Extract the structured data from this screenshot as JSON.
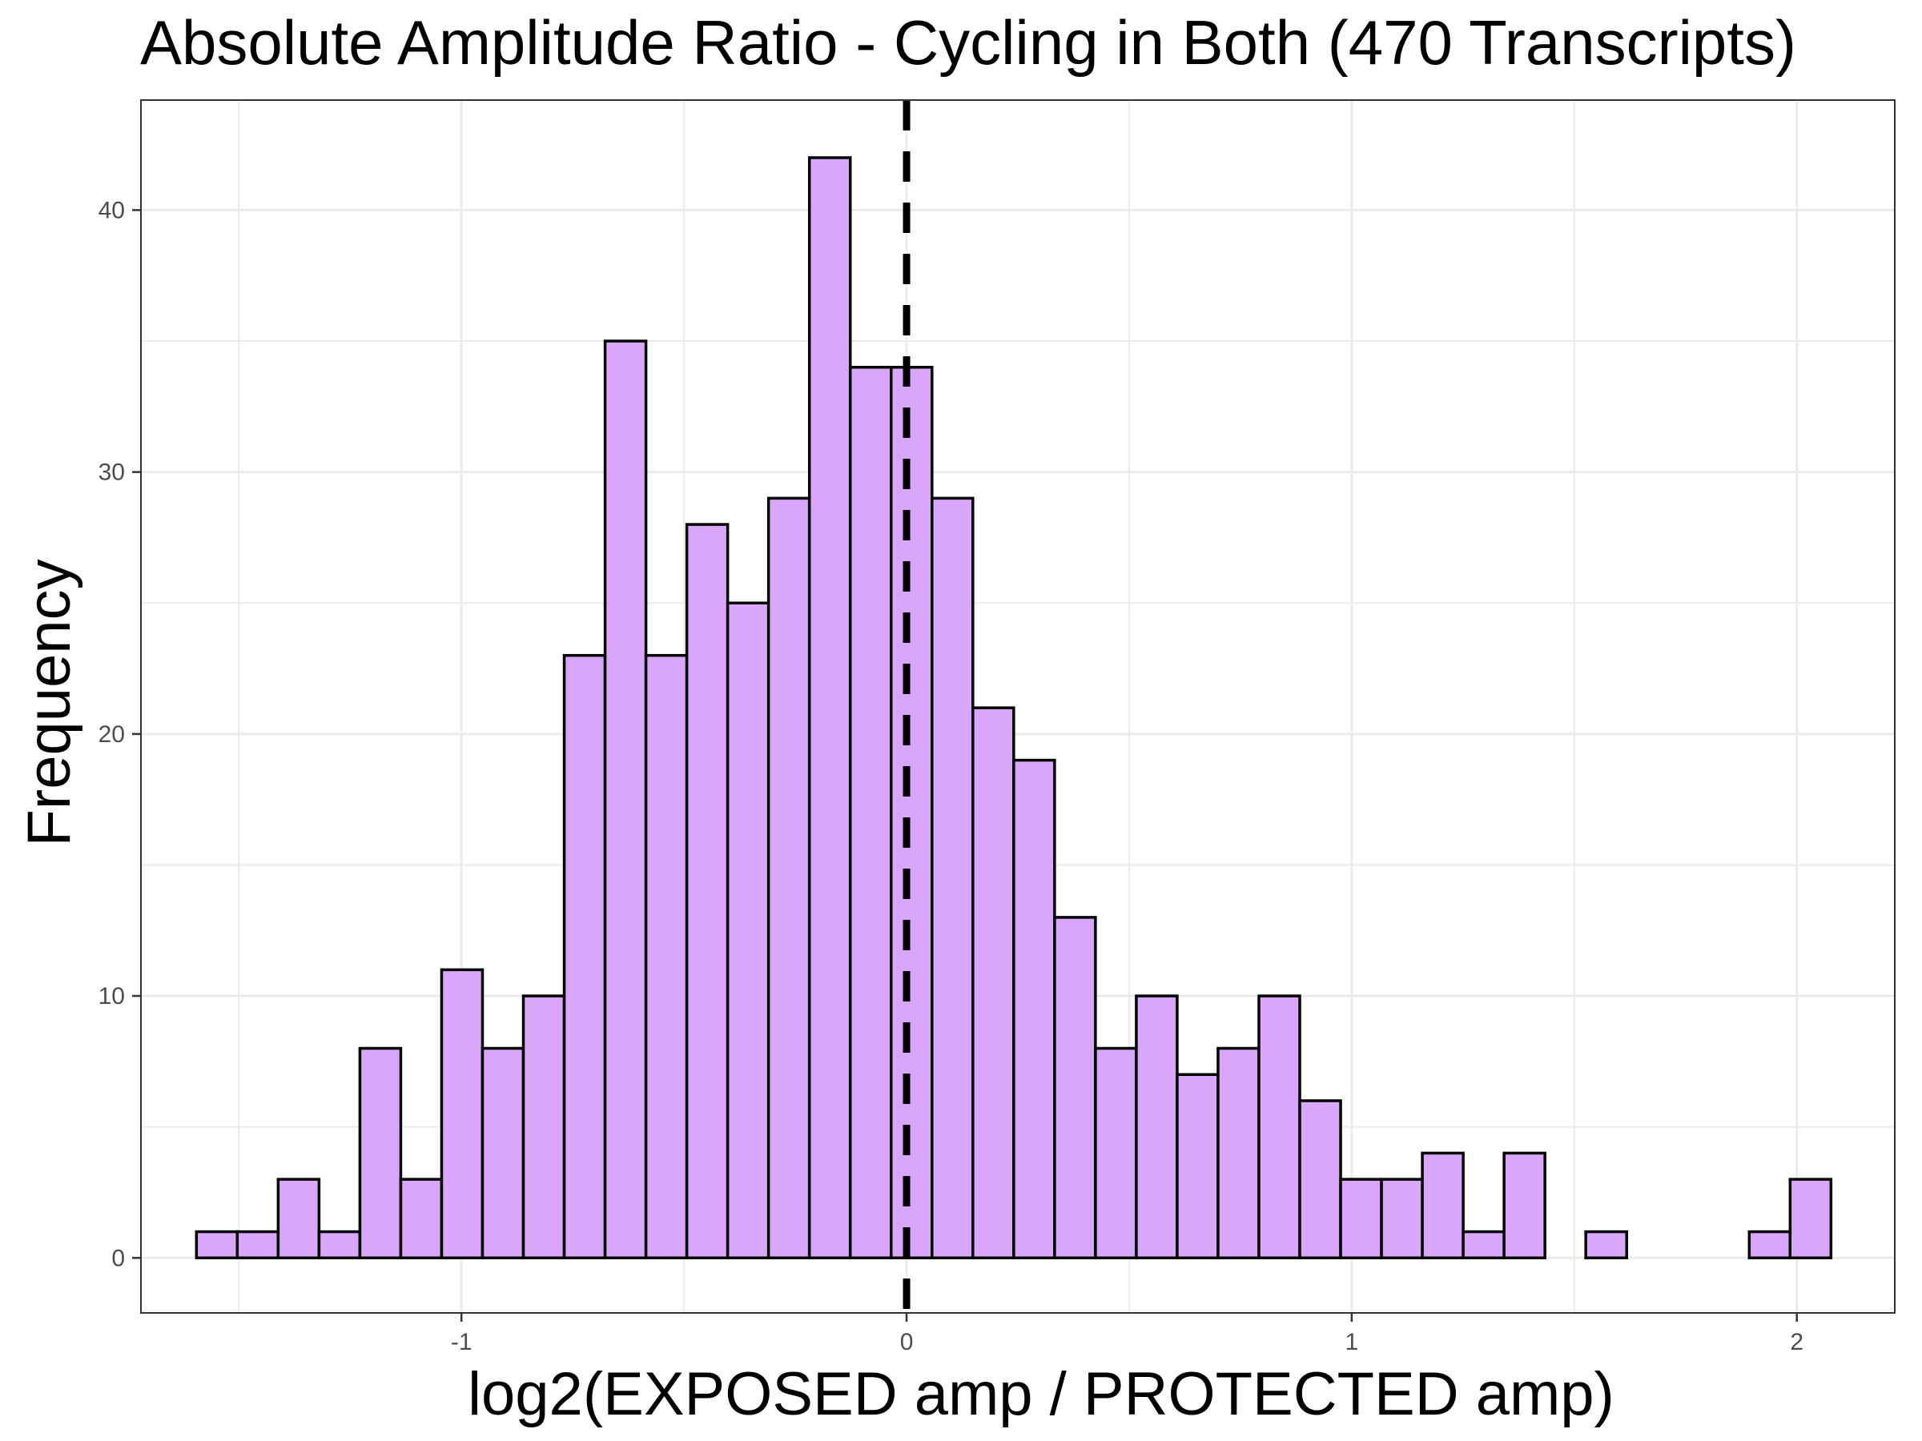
{
  "chart_data": {
    "type": "bar",
    "title": "Absolute Amplitude Ratio - Cycling in Both (470 Transcripts)",
    "xlabel": "log2(EXPOSED amp / PROTECTED amp)",
    "ylabel": "Frequency",
    "bin_width": 0.0918,
    "bin_starts": [
      -1.5953,
      -1.5035,
      -1.4117,
      -1.3199,
      -1.2281,
      -1.1363,
      -1.0445,
      -0.9527,
      -0.8609,
      -0.7691,
      -0.6773,
      -0.5855,
      -0.4937,
      -0.4019,
      -0.3101,
      -0.2183,
      -0.1265,
      -0.0347,
      0.0571,
      0.1489,
      0.2407,
      0.3325,
      0.4243,
      0.5161,
      0.6079,
      0.6997,
      0.7915,
      0.8833,
      0.9751,
      1.0669,
      1.1587,
      1.2505,
      1.3423,
      1.4341,
      1.5259,
      1.6177,
      1.7095,
      1.8013,
      1.8931,
      1.9849
    ],
    "values": [
      1,
      1,
      3,
      1,
      8,
      3,
      11,
      8,
      10,
      23,
      35,
      23,
      28,
      25,
      29,
      42,
      34,
      34,
      29,
      21,
      19,
      13,
      8,
      10,
      7,
      8,
      10,
      6,
      3,
      3,
      4,
      1,
      4,
      0,
      1,
      0,
      0,
      0,
      1,
      3
    ],
    "xlim": [
      -1.72,
      2.22
    ],
    "ylim": [
      -2.1,
      44.2
    ],
    "x_ticks": [
      -1,
      0,
      1,
      2
    ],
    "x_tick_labels": [
      "-1",
      "0",
      "1",
      "2"
    ],
    "y_ticks": [
      0,
      10,
      20,
      30,
      40
    ],
    "y_tick_labels": [
      "0",
      "10",
      "20",
      "30",
      "40"
    ],
    "vline_x": 0,
    "grid": true,
    "colors": {
      "bar_fill": "#d9a6f9",
      "bar_stroke": "#000000",
      "grid": "#ebebeb",
      "vline": "#000000"
    }
  }
}
